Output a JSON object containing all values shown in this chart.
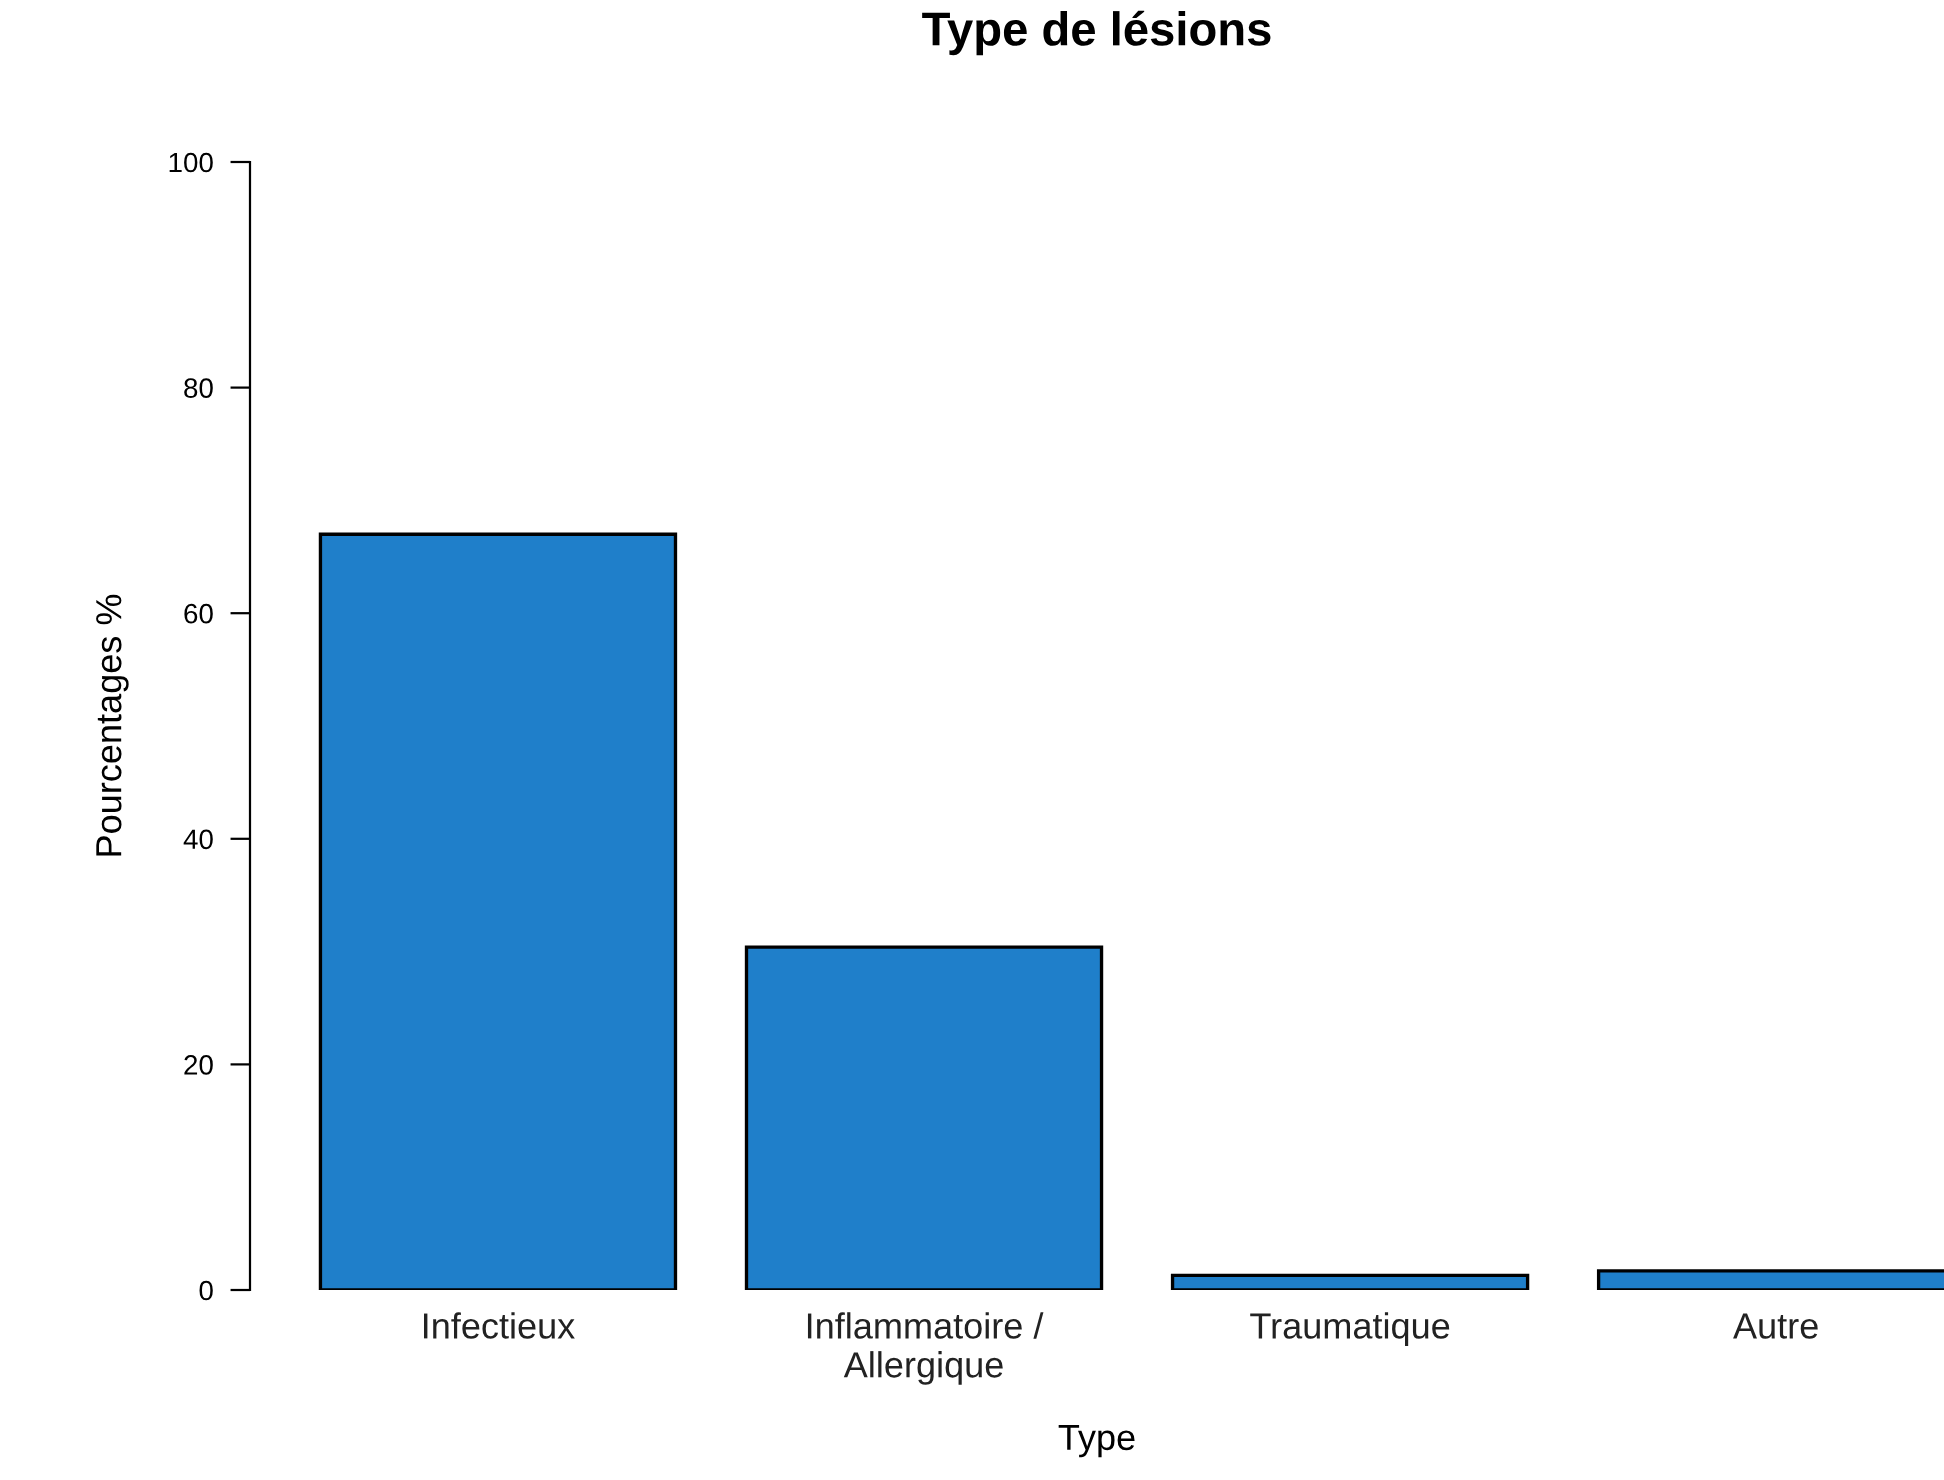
{
  "chart_data": {
    "type": "bar",
    "title": "Type de lésions",
    "xlabel": "Type",
    "ylabel": "Pourcentages %",
    "categories": [
      "Infectieux",
      "Inflammatoire /\nAllergique",
      "Traumatique",
      "Autre"
    ],
    "values": [
      67.0,
      30.4,
      1.3,
      1.7
    ],
    "color": "#1f7fca",
    "ylim": [
      0,
      100
    ],
    "yticks": [
      0,
      20,
      40,
      60,
      80,
      100
    ],
    "grid": false,
    "legend": false
  }
}
